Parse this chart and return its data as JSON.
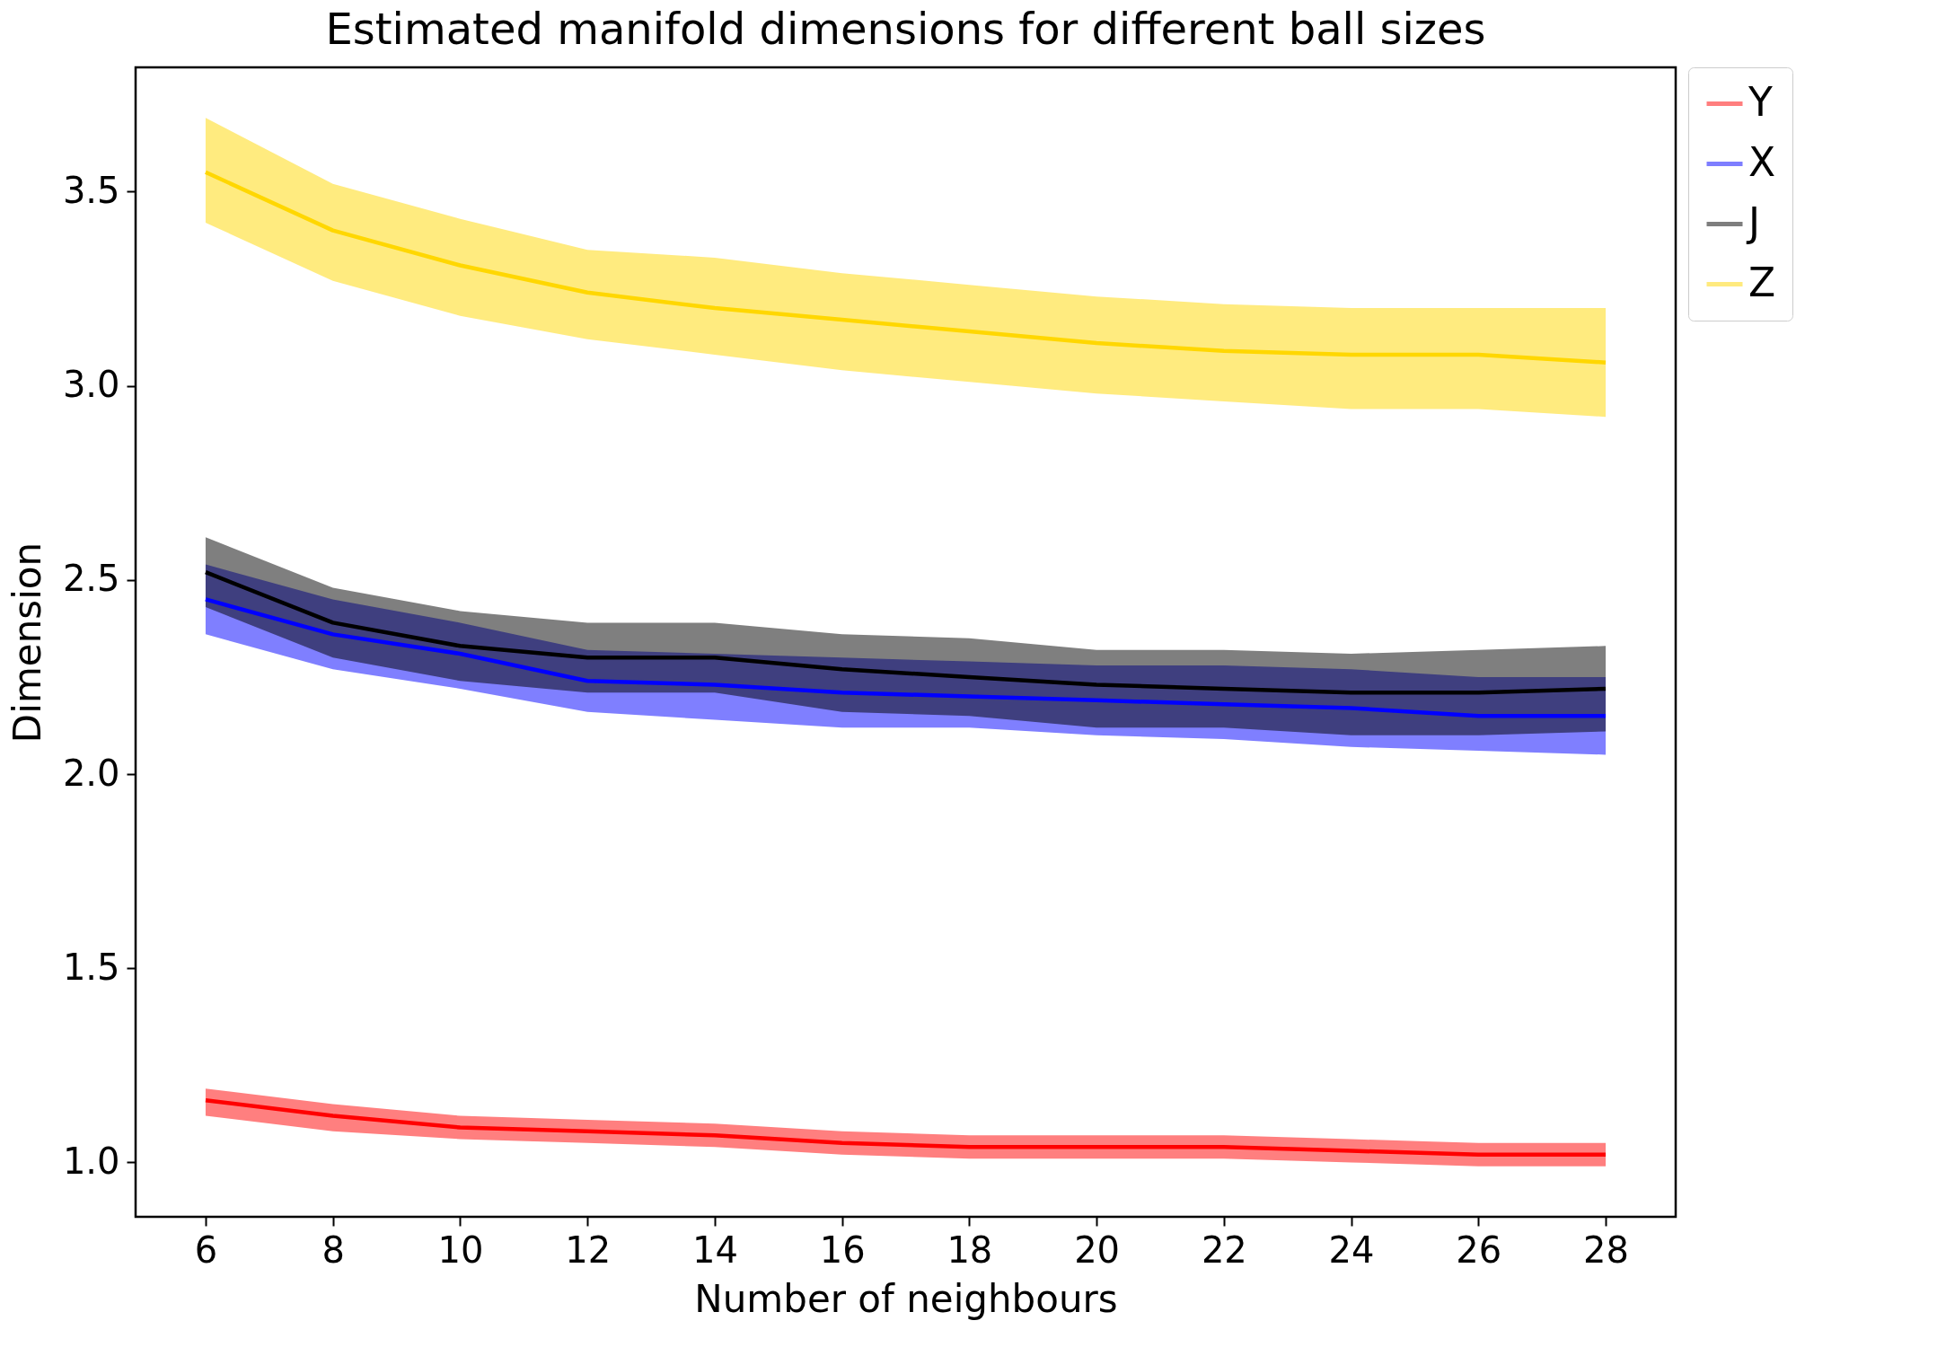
{
  "chart_data": {
    "type": "line",
    "title": "Estimated manifold dimensions for different ball sizes",
    "xlabel": "Number of neighbours",
    "ylabel": "Dimension",
    "x": [
      6,
      8,
      10,
      12,
      14,
      16,
      18,
      20,
      22,
      24,
      26,
      28
    ],
    "xlim": [
      4.9,
      29.1
    ],
    "xticks": [
      6,
      8,
      10,
      12,
      14,
      16,
      18,
      20,
      22,
      24,
      26,
      28
    ],
    "ylim": [
      0.86,
      3.82
    ],
    "yticks": [
      {
        "value": 1,
        "label": "1.0"
      },
      {
        "value": 1.5,
        "label": "1.5"
      },
      {
        "value": 2,
        "label": "2.0"
      },
      {
        "value": 2.5,
        "label": "2.5"
      },
      {
        "value": 3,
        "label": "3.0"
      },
      {
        "value": 3.5,
        "label": "3.5"
      }
    ],
    "grid": false,
    "legend": "top right",
    "series": [
      {
        "name": "Y",
        "color": "#ff0000",
        "values": [
          1.16,
          1.12,
          1.09,
          1.08,
          1.07,
          1.05,
          1.04,
          1.04,
          1.04,
          1.03,
          1.02,
          1.02
        ],
        "lower": [
          1.12,
          1.08,
          1.06,
          1.05,
          1.04,
          1.02,
          1.01,
          1.01,
          1.01,
          1.0,
          0.99,
          0.99
        ],
        "upper": [
          1.19,
          1.15,
          1.12,
          1.11,
          1.1,
          1.08,
          1.07,
          1.07,
          1.07,
          1.06,
          1.05,
          1.05
        ]
      },
      {
        "name": "X",
        "color": "#0000ff",
        "values": [
          2.45,
          2.36,
          2.31,
          2.24,
          2.23,
          2.21,
          2.2,
          2.19,
          2.18,
          2.17,
          2.15,
          2.15
        ],
        "lower": [
          2.36,
          2.27,
          2.22,
          2.16,
          2.14,
          2.12,
          2.12,
          2.1,
          2.09,
          2.07,
          2.06,
          2.05
        ],
        "upper": [
          2.54,
          2.45,
          2.39,
          2.32,
          2.31,
          2.3,
          2.29,
          2.28,
          2.28,
          2.27,
          2.25,
          2.25
        ]
      },
      {
        "name": "J",
        "color": "#000000",
        "values": [
          2.52,
          2.39,
          2.33,
          2.3,
          2.3,
          2.27,
          2.25,
          2.23,
          2.22,
          2.21,
          2.21,
          2.22
        ],
        "lower": [
          2.43,
          2.3,
          2.24,
          2.21,
          2.21,
          2.16,
          2.15,
          2.12,
          2.12,
          2.1,
          2.1,
          2.11
        ],
        "upper": [
          2.61,
          2.48,
          2.42,
          2.39,
          2.39,
          2.36,
          2.35,
          2.32,
          2.32,
          2.31,
          2.32,
          2.33
        ]
      },
      {
        "name": "Z",
        "color": "#ffd700",
        "values": [
          3.55,
          3.4,
          3.31,
          3.24,
          3.2,
          3.17,
          3.14,
          3.11,
          3.09,
          3.08,
          3.08,
          3.06
        ],
        "lower": [
          3.42,
          3.27,
          3.18,
          3.12,
          3.08,
          3.04,
          3.01,
          2.98,
          2.96,
          2.94,
          2.94,
          2.92
        ],
        "upper": [
          3.69,
          3.52,
          3.43,
          3.35,
          3.33,
          3.29,
          3.26,
          3.23,
          3.21,
          3.2,
          3.2,
          3.2
        ]
      }
    ]
  }
}
